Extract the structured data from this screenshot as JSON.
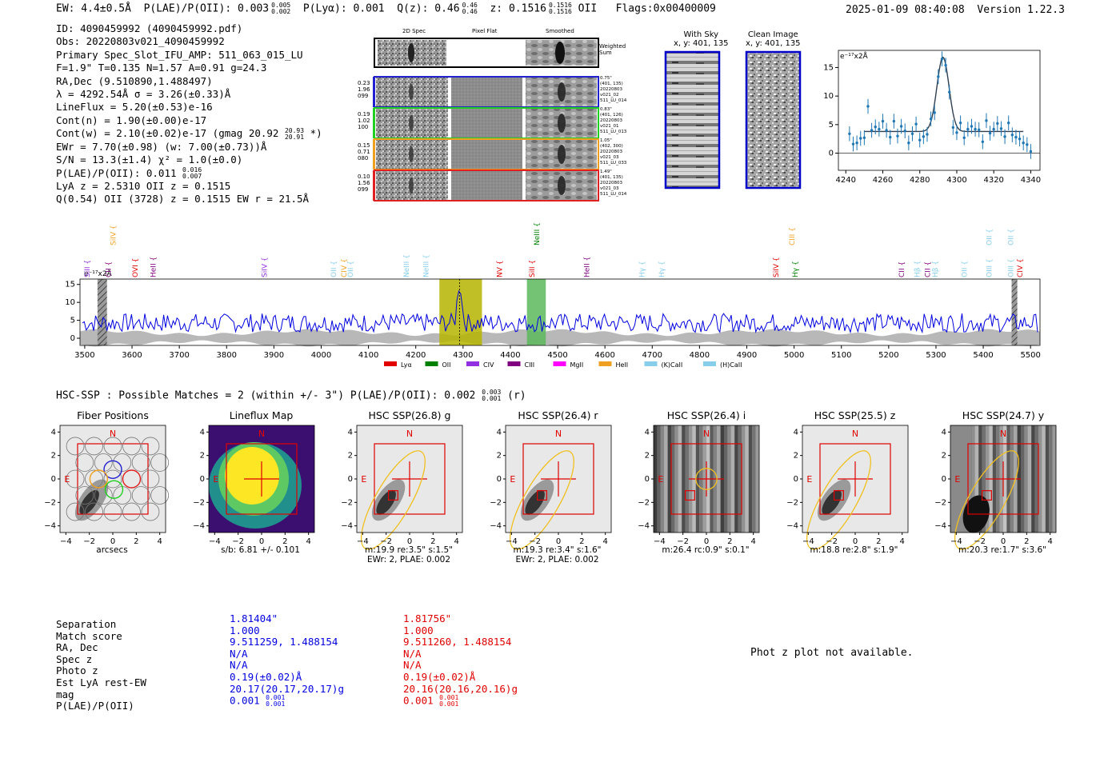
{
  "header": {
    "ew": "EW: 4.4±0.5Å",
    "plae": "P(LAE)/P(OII): 0.003",
    "plae_hi": "0.005",
    "plae_lo": "0.002",
    "plya": "P(Lyα): 0.001",
    "qz": "Q(z): 0.46",
    "qz_hi": "0.46",
    "qz_lo": "0.46",
    "z": "z: 0.1516",
    "z_hi": "0.1516",
    "z_lo": "0.1516",
    "line": "OII",
    "flags": "Flags:0x00400009",
    "datetime": "2025-01-09 08:40:08",
    "version": "Version 1.22.3"
  },
  "info": {
    "lines": [
      "ID: 4090459992 (4090459992.pdf)",
      "Obs: 20220803v021_4090459992",
      "Primary Spec_Slot_IFU_AMP: 511_063_015_LU",
      "F=1.9\"  T=0.135  N=1.57  A=0.91  g=24.3",
      "RA,Dec (9.510890,1.488497)",
      "λ = 4292.54Å  σ = 3.26(±0.33)Å",
      "LineFlux = 5.20(±0.53)e-16",
      "Cont(n) = 1.90(±0.00)e-17",
      "Cont(w) = 2.10(±0.02)e-17 (gmag 20.92",
      "EWr = 7.70(±0.98) (w: 7.00(±0.73))Å",
      "S/N = 13.3(±1.4)  χ² = 1.0(±0.0)",
      "P(LAE)/P(OII): 0.011",
      "LyA z = 2.5310  OII z = 0.1515",
      "Q(0.54) OII (3728) z = 0.1515  EW r = 21.5Å"
    ],
    "gmag_hi": "20.93",
    "gmag_lo": "20.91",
    "gmag_close": "*)",
    "plae_hi": "0.016",
    "plae_lo": "0.007"
  },
  "cutouts": {
    "col_labels": [
      "2D Spec",
      "Pixel Flat",
      "Smoothed"
    ],
    "weighted_sum": "Weighted Sum",
    "rows": [
      {
        "left": [
          "0.23",
          "1.96",
          "099"
        ],
        "right": [
          "0.75\"",
          "(401, 135)",
          "20220803",
          "v021_02",
          "511_LU_014"
        ],
        "color": "#2020d0"
      },
      {
        "left": [
          "0.19",
          "1.02",
          "100"
        ],
        "right": [
          "0.83\"",
          "(401, 126)",
          "20220803",
          "v021_01",
          "511_LU_013"
        ],
        "color": "#20d020"
      },
      {
        "left": [
          "0.15",
          "0.71",
          "080"
        ],
        "right": [
          "1.05\"",
          "(402, 300)",
          "20220803",
          "v021_03",
          "511_LU_033"
        ],
        "color": "#f0a020"
      },
      {
        "left": [
          "0.10",
          "1.56",
          "099"
        ],
        "right": [
          "1.49\"",
          "(401, 135)",
          "20220803",
          "v021_03",
          "511_LU_014"
        ],
        "color": "#e02020"
      }
    ],
    "with_sky": "With Sky",
    "clean": "Clean Image",
    "xy": "x, y: 401, 135"
  },
  "colors": {
    "blue": "#0000e0",
    "red": "#e00000",
    "gray": "#b0b0b0",
    "olive": "#b5b500",
    "green": "#5cb85c",
    "fit": "#2f3f4f",
    "pts": "#1f77b4"
  },
  "zoom_chart": {
    "type": "scatter",
    "ylabel": "e⁻¹⁷x2Å",
    "xlim": [
      4236,
      4345
    ],
    "ylim": [
      -3,
      18
    ],
    "xticks": [
      4240,
      4260,
      4280,
      4300,
      4320,
      4340
    ],
    "yticks": [
      0,
      5,
      10,
      15
    ],
    "x": [
      4242,
      4244,
      4246,
      4248,
      4250,
      4252,
      4254,
      4256,
      4258,
      4260,
      4262,
      4264,
      4266,
      4268,
      4270,
      4272,
      4274,
      4276,
      4278,
      4280,
      4282,
      4284,
      4286,
      4288,
      4290,
      4292,
      4294,
      4296,
      4298,
      4300,
      4302,
      4304,
      4306,
      4308,
      4310,
      4312,
      4314,
      4316,
      4318,
      4320,
      4322,
      4324,
      4326,
      4328,
      4330,
      4332,
      4334,
      4336,
      4338,
      4340
    ],
    "y": [
      3.4,
      1.6,
      1.8,
      2.6,
      2.7,
      8.2,
      4.0,
      4.6,
      4.2,
      5.6,
      4.0,
      2.8,
      5.6,
      3.0,
      4.7,
      3.9,
      1.8,
      3.4,
      5.1,
      2.3,
      2.9,
      3.3,
      6.0,
      7.1,
      13.4,
      16.5,
      15.4,
      10.7,
      4.5,
      3.6,
      5.3,
      2.7,
      4.2,
      4.7,
      4.2,
      4.1,
      2.0,
      5.7,
      3.5,
      4.2,
      5.2,
      4.3,
      2.9,
      5.3,
      3.2,
      2.8,
      2.5,
      1.8,
      1.5,
      0.3
    ],
    "fit_center": 4292.54,
    "fit_sigma": 3.26,
    "fit_amp": 13.0,
    "fit_cont": 3.8,
    "fit_range": [
      4250,
      4336
    ]
  },
  "spectrum_chart": {
    "type": "line",
    "ylabel": "e⁻¹⁷x2Å",
    "xlim": [
      3490,
      5520
    ],
    "ylim": [
      -2,
      16.5
    ],
    "xticks": [
      3500,
      3600,
      3700,
      3800,
      3900,
      4000,
      4100,
      4200,
      4300,
      4400,
      4500,
      4600,
      4700,
      4800,
      4900,
      5000,
      5100,
      5200,
      5300,
      5400,
      5500
    ],
    "yticks": [
      0,
      5,
      10,
      15
    ],
    "peak_wave": 4292.5,
    "peak_value": 15.5,
    "base_level": 4.3,
    "bands": [
      {
        "x0": 4250,
        "x1": 4340,
        "color": "#b5b500"
      },
      {
        "x0": 4435,
        "x1": 4475,
        "color": "#5cb85c"
      }
    ],
    "hatched": [
      [
        3527,
        3547
      ],
      [
        5460,
        5472
      ]
    ],
    "lines_upper": [
      {
        "name": "SiIV",
        "wave": 3560,
        "color": "#f0a020"
      },
      {
        "name": "NeIII",
        "wave": 4456,
        "color": "#008000"
      },
      {
        "name": "CIII",
        "wave": 4996,
        "color": "#f0a020"
      },
      {
        "name": "OII",
        "wave": 5413,
        "color": "#87ceeb"
      },
      {
        "name": "OII",
        "wave": 5458,
        "color": "#87ceeb"
      }
    ],
    "lines_lower": [
      {
        "name": "SiII",
        "wave": 3505,
        "color": "#9030e0"
      },
      {
        "name": "CII",
        "wave": 3550,
        "color": "#800080"
      },
      {
        "name": "OVI",
        "wave": 3607,
        "color": "#e00000"
      },
      {
        "name": "HeII",
        "wave": 3645,
        "color": "#800080"
      },
      {
        "name": "SiIV",
        "wave": 3880,
        "color": "#9030e0"
      },
      {
        "name": "OII",
        "wave": 4026,
        "color": "#87ceeb"
      },
      {
        "name": "CIV",
        "wave": 4048,
        "color": "#f0a020"
      },
      {
        "name": "OII",
        "wave": 4062,
        "color": "#87ceeb"
      },
      {
        "name": "NeIII",
        "wave": 4180,
        "color": "#87ceeb"
      },
      {
        "name": "NeIII",
        "wave": 4222,
        "color": "#87ceeb"
      },
      {
        "name": "NV",
        "wave": 4377,
        "color": "#e00000"
      },
      {
        "name": "SiII",
        "wave": 4446,
        "color": "#e00000"
      },
      {
        "name": "HeII",
        "wave": 4562,
        "color": "#800080"
      },
      {
        "name": "Hγ",
        "wave": 4678,
        "color": "#87ceeb"
      },
      {
        "name": "Hγ",
        "wave": 4720,
        "color": "#87ceeb"
      },
      {
        "name": "SiIV",
        "wave": 4962,
        "color": "#e00000"
      },
      {
        "name": "Hγ",
        "wave": 5002,
        "color": "#008000"
      },
      {
        "name": "CII",
        "wave": 5227,
        "color": "#800080"
      },
      {
        "name": "Hβ",
        "wave": 5260,
        "color": "#87ceeb"
      },
      {
        "name": "CII",
        "wave": 5282,
        "color": "#800080"
      },
      {
        "name": "Hβ",
        "wave": 5298,
        "color": "#87ceeb"
      },
      {
        "name": "OII",
        "wave": 5360,
        "color": "#87ceeb"
      },
      {
        "name": "OIII",
        "wave": 5413,
        "color": "#87ceeb"
      },
      {
        "name": "OIII",
        "wave": 5458,
        "color": "#87ceeb"
      },
      {
        "name": "CIV",
        "wave": 5478,
        "color": "#e00000"
      }
    ],
    "legend": [
      {
        "name": "Lyα",
        "color": "#e00000"
      },
      {
        "name": "OII",
        "color": "#008000"
      },
      {
        "name": "CIV",
        "color": "#9030e0"
      },
      {
        "name": "CIII",
        "color": "#800080"
      },
      {
        "name": "MgII",
        "color": "#ff00ff"
      },
      {
        "name": "HeII",
        "color": "#f0a020"
      },
      {
        "name": "(K)CaII",
        "color": "#87ceeb"
      },
      {
        "name": "(H)CaII",
        "color": "#87ceeb"
      }
    ]
  },
  "hsc": {
    "title": "HSC-SSP : Possible Matches = 2 (within +/- 3\")  P(LAE)/P(OII): 0.002",
    "title_hi": "0.003",
    "title_lo": "0.001",
    "title_tail": "(r)",
    "panels": [
      {
        "title": "Fiber Positions",
        "caption": [
          "arcsecs"
        ],
        "kind": "fiber"
      },
      {
        "title": "Lineflux Map",
        "caption": [
          "s/b: 6.81 +/- 0.101"
        ],
        "kind": "lineflux"
      },
      {
        "title": "HSC SSP(26.8) g",
        "caption": [
          "m:19.9  re:3.5\"  s:1.5\"",
          "EWr: 2, PLAE: 0.002"
        ],
        "kind": "gal"
      },
      {
        "title": "HSC SSP(26.4) r",
        "caption": [
          "m:19.3  re:3.4\"  s:1.6\"",
          "EWr: 2, PLAE: 0.002"
        ],
        "kind": "gal"
      },
      {
        "title": "HSC SSP(26.4) i",
        "caption": [
          "m:26.4  rc:0.9\"  s:0.1\""
        ],
        "kind": "striped"
      },
      {
        "title": "HSC SSP(25.5) z",
        "caption": [
          "m:18.8  re:2.8\"  s:1.9\""
        ],
        "kind": "gal"
      },
      {
        "title": "HSC SSP(24.7) y",
        "caption": [
          "m:20.3  re:1.7\"  s:3.6\""
        ],
        "kind": "ystripe"
      }
    ],
    "axis_ticks": [
      "4",
      "2",
      "0",
      "−2",
      "−4"
    ],
    "x_ticks": [
      "−4",
      "−2",
      "0",
      "2",
      "4"
    ],
    "north": "N",
    "east": "E"
  },
  "match_table": {
    "labels": [
      "Separation",
      "Match score",
      "RA, Dec",
      "Spec z",
      "Photo z",
      "Est LyA rest-EW",
      "mag",
      "P(LAE)/P(OII)"
    ],
    "col1": [
      "1.81404\"",
      "1.000",
      "9.511259, 1.488154",
      "N/A",
      "N/A",
      "0.19(±0.02)Å",
      "20.17(20.17,20.17)g",
      "0.001"
    ],
    "col1_hi": "0.001",
    "col1_lo": "0.001",
    "col2": [
      "1.81756\"",
      "1.000",
      "9.511260, 1.488154",
      "N/A",
      "N/A",
      "0.19(±0.02)Å",
      "20.16(20.16,20.16)g",
      "0.001"
    ],
    "col2_hi": "0.001",
    "col2_lo": "0.001"
  },
  "photz_msg": "Phot z plot not available."
}
